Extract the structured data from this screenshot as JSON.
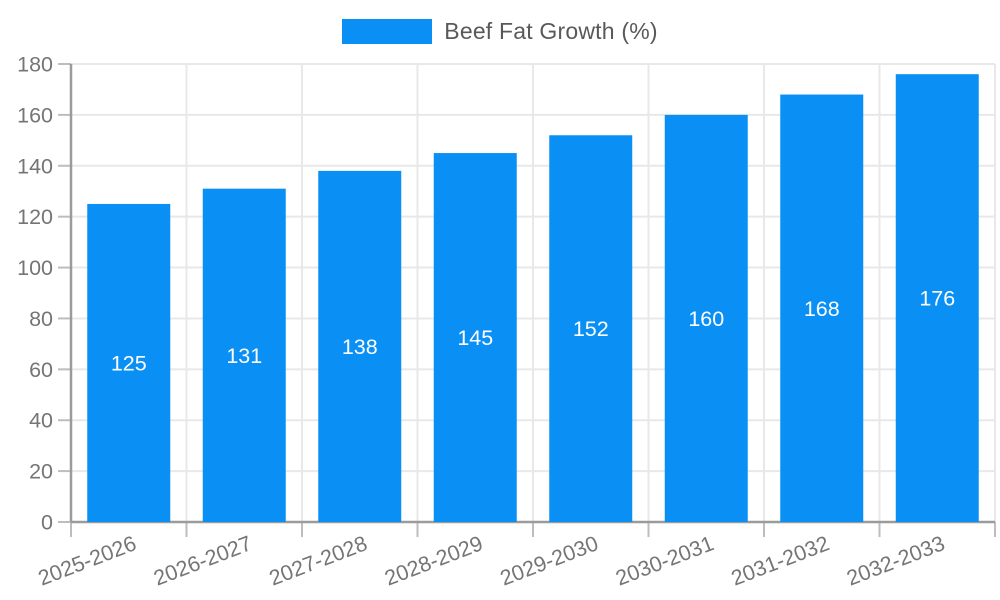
{
  "legend": {
    "label": "Beef Fat Growth (%)"
  },
  "colors": {
    "bar": "#0a90f5",
    "grid": "#e8e8e8",
    "axis": "#9b9b9b",
    "tick": "#bdbdbd",
    "tick_label": "#757575",
    "legend_text": "#595959",
    "value_label": "#ffffff",
    "background": "#ffffff"
  },
  "chart_data": {
    "type": "bar",
    "title": "Beef Fat Growth (%)",
    "categories": [
      "2025-2026",
      "2026-2027",
      "2027-2028",
      "2028-2029",
      "2029-2030",
      "2030-2031",
      "2031-2032",
      "2032-2033"
    ],
    "values": [
      125,
      131,
      138,
      145,
      152,
      160,
      168,
      176
    ],
    "series": [
      {
        "name": "Beef Fat Growth (%)",
        "values": [
          125,
          131,
          138,
          145,
          152,
          160,
          168,
          176
        ]
      }
    ],
    "xlabel": "",
    "ylabel": "",
    "ylim": [
      0,
      180
    ],
    "yticks": [
      0,
      20,
      40,
      60,
      80,
      100,
      120,
      140,
      160,
      180
    ],
    "grid": true,
    "legend_position": "top-center",
    "value_labels": "inside-center",
    "x_label_rotation": -21
  }
}
